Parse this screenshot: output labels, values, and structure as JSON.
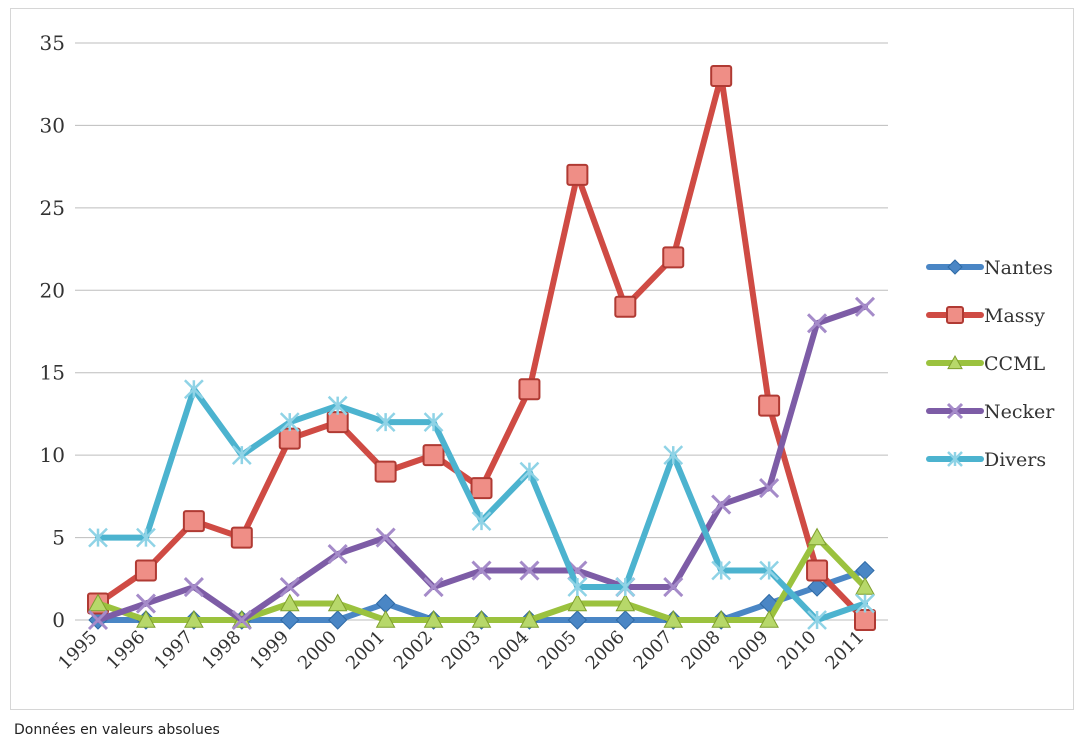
{
  "caption": "Données en valeurs absolues",
  "chart_data": {
    "type": "line",
    "title": "",
    "xlabel": "",
    "ylabel": "",
    "ylim": [
      0,
      35
    ],
    "yticks": [
      0,
      5,
      10,
      15,
      20,
      25,
      30,
      35
    ],
    "grid": true,
    "legend_position": "right",
    "categories": [
      "1995",
      "1996",
      "1997",
      "1998",
      "1999",
      "2000",
      "2001",
      "2002",
      "2003",
      "2004",
      "2005",
      "2006",
      "2007",
      "2008",
      "2009",
      "2010",
      "2011"
    ],
    "series": [
      {
        "name": "Nantes",
        "color": "#4a86c5",
        "marker": "diamond",
        "values": [
          0,
          0,
          0,
          0,
          0,
          0,
          1,
          0,
          0,
          0,
          0,
          0,
          0,
          0,
          1,
          2,
          3
        ]
      },
      {
        "name": "Massy",
        "color": "#cf4b44",
        "marker": "square",
        "values": [
          1,
          3,
          6,
          5,
          11,
          12,
          9,
          10,
          8,
          14,
          27,
          19,
          22,
          33,
          13,
          3,
          0
        ]
      },
      {
        "name": "CCML",
        "color": "#9bc23e",
        "marker": "triangle",
        "values": [
          1,
          0,
          0,
          0,
          1,
          1,
          0,
          0,
          0,
          0,
          1,
          1,
          0,
          0,
          0,
          5,
          2
        ]
      },
      {
        "name": "Necker",
        "color": "#7d5ca6",
        "marker": "x",
        "values": [
          0,
          1,
          2,
          0,
          2,
          4,
          5,
          2,
          3,
          3,
          3,
          2,
          2,
          7,
          8,
          18,
          19
        ]
      },
      {
        "name": "Divers",
        "color": "#4cb3cf",
        "marker": "star",
        "values": [
          5,
          5,
          14,
          10,
          12,
          13,
          12,
          12,
          6,
          9,
          2,
          2,
          10,
          3,
          3,
          0,
          1
        ]
      }
    ]
  }
}
